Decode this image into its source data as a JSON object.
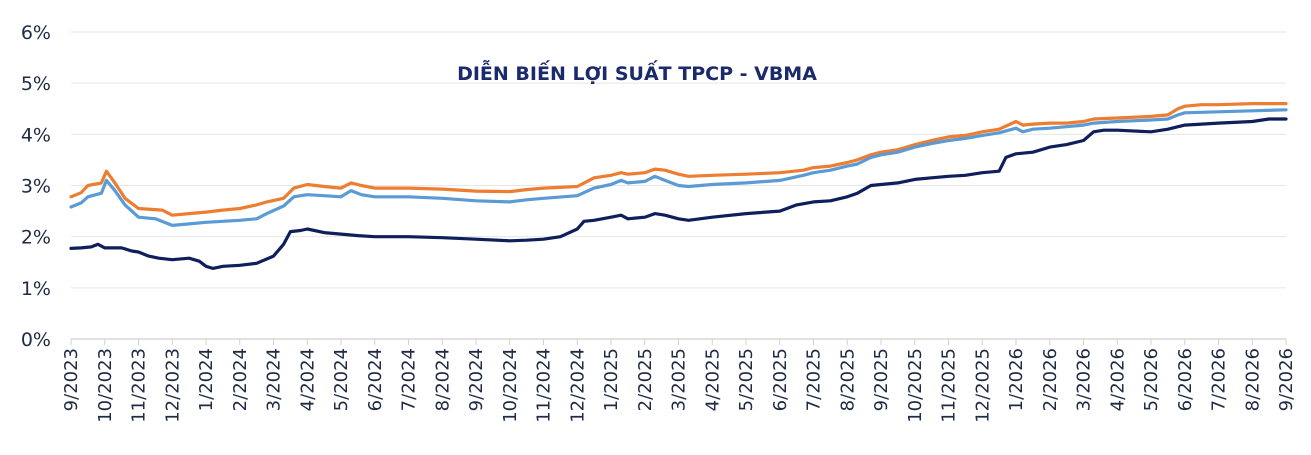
{
  "chart_data": {
    "type": "line",
    "title": "DIỄN BIẾN LỢI SUẤT TPCP - VBMA",
    "xlabel": "",
    "ylabel": "",
    "ylim": [
      0,
      6
    ],
    "y_ticks": [
      "0%",
      "1%",
      "2%",
      "3%",
      "4%",
      "5%",
      "6%"
    ],
    "x_tick_labels": [
      "9/2023",
      "10/2023",
      "11/2023",
      "12/2023",
      "1/2024",
      "2/2024",
      "3/2024",
      "4/2024",
      "5/2024",
      "6/2024",
      "7/2024",
      "8/2024",
      "9/2024",
      "10/2024",
      "11/2024",
      "12/2024",
      "1/2025",
      "2/2025",
      "3/2025",
      "4/2025",
      "5/2025",
      "6/2025",
      "7/2025",
      "8/2025",
      "9/2025",
      "10/2025",
      "11/2025",
      "12/2025",
      "1/2026",
      "2/2026",
      "3/2026",
      "4/2026",
      "5/2026",
      "6/2026",
      "7/2026",
      "8/2026",
      "9/2026"
    ],
    "grid": true,
    "legend": "none",
    "series": [
      {
        "color": "#ed7d31",
        "points": [
          [
            0,
            2.78
          ],
          [
            0.3,
            2.86
          ],
          [
            0.5,
            3.0
          ],
          [
            0.9,
            3.05
          ],
          [
            1.05,
            3.28
          ],
          [
            1.3,
            3.05
          ],
          [
            1.6,
            2.75
          ],
          [
            2.0,
            2.55
          ],
          [
            2.7,
            2.52
          ],
          [
            3.0,
            2.42
          ],
          [
            3.5,
            2.45
          ],
          [
            4.0,
            2.48
          ],
          [
            4.5,
            2.52
          ],
          [
            5.0,
            2.55
          ],
          [
            5.5,
            2.62
          ],
          [
            5.8,
            2.68
          ],
          [
            6.3,
            2.75
          ],
          [
            6.6,
            2.95
          ],
          [
            7.0,
            3.02
          ],
          [
            7.5,
            2.98
          ],
          [
            8.0,
            2.95
          ],
          [
            8.3,
            3.05
          ],
          [
            8.6,
            3.0
          ],
          [
            9.0,
            2.95
          ],
          [
            10.0,
            2.95
          ],
          [
            11.0,
            2.93
          ],
          [
            12.0,
            2.89
          ],
          [
            13.0,
            2.88
          ],
          [
            13.5,
            2.92
          ],
          [
            14.0,
            2.95
          ],
          [
            15.0,
            2.98
          ],
          [
            15.5,
            3.15
          ],
          [
            16.0,
            3.2
          ],
          [
            16.3,
            3.25
          ],
          [
            16.5,
            3.22
          ],
          [
            17.0,
            3.25
          ],
          [
            17.3,
            3.32
          ],
          [
            17.6,
            3.3
          ],
          [
            18.0,
            3.22
          ],
          [
            18.3,
            3.18
          ],
          [
            19.0,
            3.2
          ],
          [
            20.0,
            3.22
          ],
          [
            21.0,
            3.25
          ],
          [
            21.7,
            3.3
          ],
          [
            22.0,
            3.35
          ],
          [
            22.5,
            3.38
          ],
          [
            23.0,
            3.45
          ],
          [
            23.3,
            3.5
          ],
          [
            23.7,
            3.6
          ],
          [
            24.0,
            3.65
          ],
          [
            24.5,
            3.7
          ],
          [
            25.0,
            3.8
          ],
          [
            25.5,
            3.88
          ],
          [
            26.0,
            3.95
          ],
          [
            26.5,
            3.98
          ],
          [
            27.0,
            4.05
          ],
          [
            27.5,
            4.1
          ],
          [
            28.0,
            4.25
          ],
          [
            28.2,
            4.18
          ],
          [
            28.5,
            4.2
          ],
          [
            29.0,
            4.22
          ],
          [
            29.5,
            4.22
          ],
          [
            30.0,
            4.25
          ],
          [
            30.3,
            4.3
          ],
          [
            31.0,
            4.32
          ],
          [
            32.0,
            4.35
          ],
          [
            32.5,
            4.38
          ],
          [
            32.8,
            4.5
          ],
          [
            33.0,
            4.55
          ],
          [
            33.5,
            4.58
          ],
          [
            34.0,
            4.58
          ],
          [
            35.0,
            4.6
          ],
          [
            36.0,
            4.6
          ]
        ]
      },
      {
        "color": "#5b9bd5",
        "points": [
          [
            0,
            2.58
          ],
          [
            0.3,
            2.66
          ],
          [
            0.5,
            2.78
          ],
          [
            0.9,
            2.85
          ],
          [
            1.05,
            3.1
          ],
          [
            1.3,
            2.9
          ],
          [
            1.6,
            2.62
          ],
          [
            2.0,
            2.38
          ],
          [
            2.5,
            2.35
          ],
          [
            3.0,
            2.22
          ],
          [
            3.5,
            2.25
          ],
          [
            4.0,
            2.28
          ],
          [
            4.5,
            2.3
          ],
          [
            5.0,
            2.32
          ],
          [
            5.5,
            2.35
          ],
          [
            5.8,
            2.45
          ],
          [
            6.3,
            2.6
          ],
          [
            6.6,
            2.78
          ],
          [
            7.0,
            2.82
          ],
          [
            7.5,
            2.8
          ],
          [
            8.0,
            2.78
          ],
          [
            8.3,
            2.9
          ],
          [
            8.6,
            2.82
          ],
          [
            9.0,
            2.78
          ],
          [
            10.0,
            2.78
          ],
          [
            11.0,
            2.75
          ],
          [
            12.0,
            2.7
          ],
          [
            13.0,
            2.68
          ],
          [
            13.5,
            2.72
          ],
          [
            14.0,
            2.75
          ],
          [
            15.0,
            2.8
          ],
          [
            15.5,
            2.95
          ],
          [
            16.0,
            3.02
          ],
          [
            16.3,
            3.1
          ],
          [
            16.5,
            3.05
          ],
          [
            17.0,
            3.08
          ],
          [
            17.3,
            3.18
          ],
          [
            17.6,
            3.1
          ],
          [
            18.0,
            3.0
          ],
          [
            18.3,
            2.98
          ],
          [
            19.0,
            3.02
          ],
          [
            20.0,
            3.05
          ],
          [
            21.0,
            3.1
          ],
          [
            21.7,
            3.2
          ],
          [
            22.0,
            3.25
          ],
          [
            22.5,
            3.3
          ],
          [
            23.0,
            3.38
          ],
          [
            23.3,
            3.42
          ],
          [
            23.7,
            3.55
          ],
          [
            24.0,
            3.6
          ],
          [
            24.5,
            3.65
          ],
          [
            25.0,
            3.75
          ],
          [
            25.5,
            3.82
          ],
          [
            26.0,
            3.88
          ],
          [
            26.5,
            3.92
          ],
          [
            27.0,
            3.98
          ],
          [
            27.5,
            4.03
          ],
          [
            28.0,
            4.12
          ],
          [
            28.2,
            4.05
          ],
          [
            28.5,
            4.1
          ],
          [
            29.0,
            4.12
          ],
          [
            29.5,
            4.15
          ],
          [
            30.0,
            4.18
          ],
          [
            30.3,
            4.22
          ],
          [
            31.0,
            4.25
          ],
          [
            32.0,
            4.28
          ],
          [
            32.5,
            4.3
          ],
          [
            32.8,
            4.38
          ],
          [
            33.0,
            4.42
          ],
          [
            33.5,
            4.43
          ],
          [
            34.0,
            4.44
          ],
          [
            35.0,
            4.46
          ],
          [
            36.0,
            4.48
          ]
        ]
      },
      {
        "color": "#0f1f5c",
        "points": [
          [
            0,
            1.77
          ],
          [
            0.3,
            1.78
          ],
          [
            0.6,
            1.8
          ],
          [
            0.8,
            1.85
          ],
          [
            1.0,
            1.78
          ],
          [
            1.5,
            1.78
          ],
          [
            1.8,
            1.72
          ],
          [
            2.0,
            1.7
          ],
          [
            2.3,
            1.62
          ],
          [
            2.6,
            1.58
          ],
          [
            3.0,
            1.55
          ],
          [
            3.5,
            1.58
          ],
          [
            3.8,
            1.52
          ],
          [
            4.0,
            1.42
          ],
          [
            4.2,
            1.38
          ],
          [
            4.5,
            1.42
          ],
          [
            5.0,
            1.44
          ],
          [
            5.5,
            1.48
          ],
          [
            6.0,
            1.62
          ],
          [
            6.3,
            1.85
          ],
          [
            6.5,
            2.1
          ],
          [
            6.8,
            2.12
          ],
          [
            7.0,
            2.15
          ],
          [
            7.5,
            2.08
          ],
          [
            8.0,
            2.05
          ],
          [
            8.5,
            2.02
          ],
          [
            9.0,
            2.0
          ],
          [
            10.0,
            2.0
          ],
          [
            11.0,
            1.98
          ],
          [
            12.0,
            1.95
          ],
          [
            13.0,
            1.92
          ],
          [
            13.5,
            1.93
          ],
          [
            14.0,
            1.95
          ],
          [
            14.5,
            2.0
          ],
          [
            15.0,
            2.15
          ],
          [
            15.2,
            2.3
          ],
          [
            15.5,
            2.32
          ],
          [
            16.0,
            2.38
          ],
          [
            16.3,
            2.42
          ],
          [
            16.5,
            2.35
          ],
          [
            17.0,
            2.38
          ],
          [
            17.3,
            2.45
          ],
          [
            17.6,
            2.42
          ],
          [
            18.0,
            2.35
          ],
          [
            18.3,
            2.32
          ],
          [
            19.0,
            2.38
          ],
          [
            20.0,
            2.45
          ],
          [
            21.0,
            2.5
          ],
          [
            21.5,
            2.62
          ],
          [
            22.0,
            2.68
          ],
          [
            22.5,
            2.7
          ],
          [
            23.0,
            2.78
          ],
          [
            23.3,
            2.85
          ],
          [
            23.7,
            3.0
          ],
          [
            24.0,
            3.02
          ],
          [
            24.5,
            3.05
          ],
          [
            25.0,
            3.12
          ],
          [
            25.5,
            3.15
          ],
          [
            26.0,
            3.18
          ],
          [
            26.5,
            3.2
          ],
          [
            27.0,
            3.25
          ],
          [
            27.5,
            3.28
          ],
          [
            27.7,
            3.55
          ],
          [
            28.0,
            3.62
          ],
          [
            28.5,
            3.65
          ],
          [
            29.0,
            3.75
          ],
          [
            29.5,
            3.8
          ],
          [
            30.0,
            3.88
          ],
          [
            30.3,
            4.05
          ],
          [
            30.6,
            4.08
          ],
          [
            31.0,
            4.08
          ],
          [
            32.0,
            4.05
          ],
          [
            32.5,
            4.1
          ],
          [
            32.8,
            4.15
          ],
          [
            33.0,
            4.18
          ],
          [
            33.5,
            4.2
          ],
          [
            34.0,
            4.22
          ],
          [
            35.0,
            4.25
          ],
          [
            35.5,
            4.3
          ],
          [
            36.0,
            4.3
          ]
        ]
      }
    ]
  }
}
